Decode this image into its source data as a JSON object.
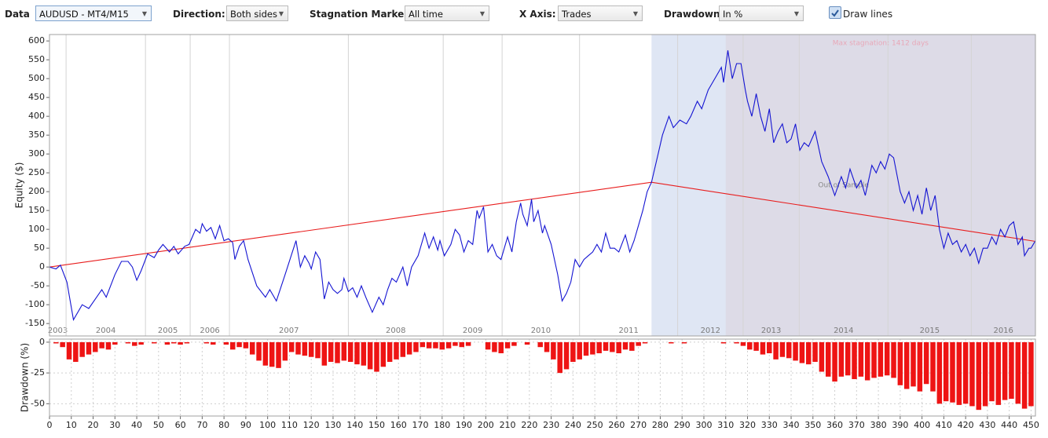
{
  "toolbar": {
    "controls": [
      {
        "label": "Data",
        "value": "AUDUSD - MT4/M15"
      },
      {
        "label": "Direction:",
        "value": "Both sides"
      },
      {
        "label": "Stagnation Marker:",
        "value": "All time"
      },
      {
        "label": "X Axis:",
        "value": "Trades"
      },
      {
        "label": "Drawdown:",
        "value": "In %"
      }
    ],
    "checkbox": {
      "label": "Draw lines",
      "checked": true
    }
  },
  "chart_data": [
    {
      "type": "line",
      "y_label": "Equity ($)",
      "xlim": [
        0,
        452
      ],
      "ylim": [
        -183,
        617
      ],
      "yticks": [
        -150,
        -100,
        -50,
        0,
        50,
        100,
        150,
        200,
        250,
        300,
        350,
        400,
        450,
        500,
        550,
        600
      ],
      "series": [
        {
          "color": "#1414d2",
          "x": [
            0,
            3,
            5,
            8,
            11,
            15,
            18,
            24,
            26,
            30,
            33,
            36,
            38,
            40,
            42,
            45,
            48,
            50,
            52,
            55,
            57,
            59,
            62,
            64,
            67,
            69,
            70,
            72,
            74,
            76,
            78,
            80,
            82,
            84,
            85,
            87,
            89,
            91,
            95,
            99,
            101,
            104,
            108,
            113,
            115,
            117,
            119,
            120,
            122,
            124,
            126,
            128,
            130,
            132,
            134,
            135,
            137,
            139,
            141,
            143,
            145,
            148,
            151,
            153,
            155,
            157,
            159,
            162,
            164,
            166,
            169,
            172,
            174,
            176,
            178,
            179,
            181,
            184,
            186,
            188,
            190,
            192,
            194,
            196,
            197,
            199,
            201,
            203,
            205,
            207,
            210,
            212,
            214,
            216,
            217,
            219,
            221,
            222,
            224,
            226,
            227,
            230,
            233,
            235,
            237,
            239,
            241,
            243,
            245,
            247,
            249,
            251,
            253,
            255,
            257,
            259,
            261,
            264,
            266,
            268,
            272,
            274,
            276,
            279,
            281,
            284,
            286,
            289,
            292,
            294,
            297,
            299,
            302,
            304,
            307,
            308,
            309,
            311,
            313,
            315,
            317,
            319,
            320,
            322,
            324,
            326,
            328,
            330,
            332,
            334,
            336,
            338,
            340,
            342,
            344,
            346,
            348,
            351,
            354,
            357,
            360,
            363,
            365,
            367,
            370,
            372,
            374,
            377,
            379,
            381,
            383,
            385,
            387,
            390,
            392,
            394,
            396,
            398,
            400,
            402,
            404,
            406,
            408,
            410,
            412,
            414,
            416,
            418,
            420,
            422,
            424,
            426,
            428,
            430,
            432,
            434,
            436,
            438,
            440,
            442,
            444,
            446,
            447,
            449,
            450,
            452
          ],
          "values": [
            0,
            -5,
            5,
            -40,
            -140,
            -100,
            -110,
            -60,
            -80,
            -20,
            15,
            15,
            0,
            -35,
            -10,
            35,
            25,
            45,
            60,
            40,
            55,
            35,
            55,
            60,
            100,
            90,
            115,
            95,
            105,
            75,
            110,
            70,
            75,
            65,
            20,
            55,
            70,
            20,
            -50,
            -80,
            -60,
            -90,
            -20,
            70,
            0,
            30,
            10,
            -5,
            40,
            20,
            -85,
            -40,
            -60,
            -70,
            -60,
            -30,
            -65,
            -55,
            -80,
            -50,
            -80,
            -120,
            -80,
            -100,
            -60,
            -30,
            -40,
            0,
            -50,
            0,
            30,
            90,
            50,
            80,
            45,
            70,
            30,
            60,
            100,
            85,
            40,
            70,
            60,
            150,
            130,
            160,
            40,
            60,
            30,
            20,
            80,
            40,
            120,
            170,
            140,
            110,
            180,
            120,
            150,
            90,
            110,
            60,
            -20,
            -90,
            -70,
            -40,
            20,
            0,
            20,
            30,
            40,
            60,
            40,
            90,
            50,
            50,
            40,
            85,
            40,
            70,
            150,
            200,
            225,
            300,
            350,
            400,
            370,
            390,
            380,
            400,
            440,
            420,
            470,
            490,
            520,
            530,
            490,
            575,
            500,
            540,
            540,
            470,
            440,
            400,
            460,
            400,
            360,
            420,
            330,
            360,
            380,
            330,
            340,
            380,
            310,
            330,
            320,
            360,
            280,
            240,
            190,
            240,
            210,
            260,
            210,
            230,
            190,
            270,
            250,
            280,
            260,
            300,
            290,
            200,
            170,
            200,
            150,
            190,
            140,
            210,
            150,
            190,
            100,
            50,
            90,
            60,
            70,
            40,
            60,
            30,
            50,
            10,
            50,
            50,
            80,
            60,
            100,
            80,
            110,
            120,
            60,
            80,
            30,
            50,
            50,
            70
          ]
        },
        {
          "color": "#e81c1c",
          "x": [
            0,
            276,
            452
          ],
          "values": [
            0,
            225,
            68
          ]
        }
      ],
      "year_markers": [
        {
          "label": "2003",
          "x": 0
        },
        {
          "label": "2004",
          "x": 7.6
        },
        {
          "label": "2005",
          "x": 44
        },
        {
          "label": "2006",
          "x": 64.5
        },
        {
          "label": "2007",
          "x": 82.5
        },
        {
          "label": "2008",
          "x": 137
        },
        {
          "label": "2009",
          "x": 180.5
        },
        {
          "label": "2010",
          "x": 207.5
        },
        {
          "label": "2011",
          "x": 243
        },
        {
          "label": "2012",
          "x": 288
        },
        {
          "label": "2013",
          "x": 318
        },
        {
          "label": "2014",
          "x": 343.7
        },
        {
          "label": "2015",
          "x": 384.4
        },
        {
          "label": "2016",
          "x": 422.6
        }
      ],
      "regions": [
        {
          "label": "Out of Sample",
          "start": 276,
          "end": 452,
          "color": "#dfe6f4",
          "text_color": "#8a8a8a"
        },
        {
          "label": "Max stagnation: 1412 days",
          "start": 310,
          "end": 452,
          "color": "#dddbe7",
          "text_color": "#e8a8b8"
        }
      ]
    },
    {
      "type": "bar",
      "y_label": "Drawdown (%)",
      "color": "#ee1414",
      "grid": true,
      "xlim": [
        0,
        452
      ],
      "ylim": [
        -60,
        2.5
      ],
      "yticks": [
        0,
        -25,
        -50
      ],
      "xticks": [
        0,
        10,
        20,
        30,
        40,
        50,
        60,
        70,
        80,
        90,
        100,
        110,
        120,
        130,
        140,
        150,
        160,
        170,
        180,
        190,
        200,
        210,
        220,
        230,
        240,
        250,
        260,
        270,
        280,
        290,
        300,
        310,
        320,
        330,
        340,
        350,
        360,
        370,
        380,
        390,
        400,
        410,
        420,
        430,
        440,
        450
      ],
      "x": [
        0,
        3,
        6,
        9,
        12,
        15,
        18,
        21,
        24,
        27,
        30,
        33,
        36,
        39,
        42,
        45,
        48,
        51,
        54,
        57,
        60,
        63,
        66,
        69,
        72,
        75,
        78,
        81,
        84,
        87,
        90,
        93,
        96,
        99,
        102,
        105,
        108,
        111,
        114,
        117,
        120,
        123,
        126,
        129,
        132,
        135,
        138,
        141,
        144,
        147,
        150,
        153,
        156,
        159,
        162,
        165,
        168,
        171,
        174,
        177,
        180,
        183,
        186,
        189,
        192,
        195,
        198,
        201,
        204,
        207,
        210,
        213,
        216,
        219,
        222,
        225,
        228,
        231,
        234,
        237,
        240,
        243,
        246,
        249,
        252,
        255,
        258,
        261,
        264,
        267,
        270,
        273,
        276,
        279,
        282,
        285,
        288,
        291,
        294,
        297,
        300,
        303,
        306,
        309,
        312,
        315,
        318,
        321,
        324,
        327,
        330,
        333,
        336,
        339,
        342,
        345,
        348,
        351,
        354,
        357,
        360,
        363,
        366,
        369,
        372,
        375,
        378,
        381,
        384,
        387,
        390,
        393,
        396,
        399,
        402,
        405,
        408,
        411,
        414,
        417,
        420,
        423,
        426,
        429,
        432,
        435,
        438,
        441,
        444,
        447,
        450
      ],
      "values": [
        0,
        -1,
        -4,
        -14,
        -16,
        -12,
        -10,
        -8,
        -5,
        -6,
        -2,
        0,
        -1,
        -3,
        -2,
        0,
        -1,
        0,
        -2,
        -1,
        -2,
        -1,
        0,
        0,
        -1,
        -2,
        0,
        -2,
        -6,
        -4,
        -5,
        -10,
        -15,
        -19,
        -20,
        -21,
        -15,
        -8,
        -10,
        -11,
        -12,
        -13,
        -19,
        -16,
        -17,
        -15,
        -16,
        -18,
        -19,
        -22,
        -24,
        -20,
        -16,
        -14,
        -12,
        -10,
        -8,
        -4,
        -5,
        -5,
        -6,
        -5,
        -3,
        -4,
        -3,
        0,
        0,
        -6,
        -8,
        -9,
        -5,
        -3,
        0,
        -2,
        0,
        -4,
        -8,
        -14,
        -25,
        -22,
        -16,
        -14,
        -11,
        -10,
        -9,
        -7,
        -8,
        -9,
        -6,
        -7,
        -3,
        -1,
        0,
        0,
        0,
        -1,
        0,
        -1,
        0,
        0,
        0,
        0,
        0,
        -1,
        0,
        -1,
        -3,
        -6,
        -7,
        -10,
        -9,
        -14,
        -12,
        -13,
        -15,
        -17,
        -18,
        -16,
        -24,
        -28,
        -32,
        -28,
        -27,
        -30,
        -28,
        -31,
        -29,
        -28,
        -27,
        -29,
        -35,
        -38,
        -36,
        -40,
        -34,
        -40,
        -50,
        -48,
        -49,
        -51,
        -50,
        -52,
        -55,
        -52,
        -48,
        -51,
        -47,
        -46,
        -50,
        -54,
        -52
      ]
    }
  ]
}
